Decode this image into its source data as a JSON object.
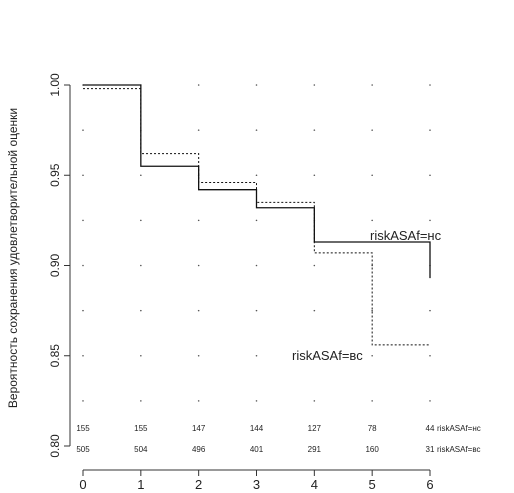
{
  "chart_data": {
    "type": "line",
    "step": true,
    "title": "",
    "xlabel": "",
    "ylabel": "Вероятность сохранения удовлетворительной оценки",
    "xlim": [
      0,
      6
    ],
    "ylim": [
      0.8,
      1.0
    ],
    "x_ticks": [
      "0",
      "1",
      "2",
      "3",
      "4",
      "5",
      "6"
    ],
    "y_ticks": [
      "0.80",
      "0.85",
      "0.90",
      "0.95",
      "1.00"
    ],
    "grid": "dotted",
    "series": [
      {
        "name": "riskASAf=нс",
        "line_style": "solid",
        "x": [
          0,
          1,
          2,
          3,
          4,
          5,
          6
        ],
        "y": [
          1.0,
          0.955,
          0.942,
          0.932,
          0.913,
          0.913,
          0.893
        ]
      },
      {
        "name": "riskASAf=вс",
        "line_style": "dotted",
        "x": [
          0,
          1,
          2,
          3,
          4,
          5,
          6
        ],
        "y": [
          0.998,
          0.962,
          0.946,
          0.935,
          0.907,
          0.856,
          0.856
        ]
      }
    ],
    "labels": [
      {
        "text": "riskASAf=нс",
        "series": 0
      },
      {
        "text": "riskASAf=вс",
        "series": 1
      }
    ],
    "risk_table": [
      {
        "label": "riskASAf=нс",
        "values": [
          "155",
          "155",
          "147",
          "144",
          "127",
          "78",
          "44"
        ]
      },
      {
        "label": "riskASAf=вс",
        "values": [
          "505",
          "504",
          "496",
          "401",
          "291",
          "160",
          "31"
        ]
      }
    ]
  }
}
